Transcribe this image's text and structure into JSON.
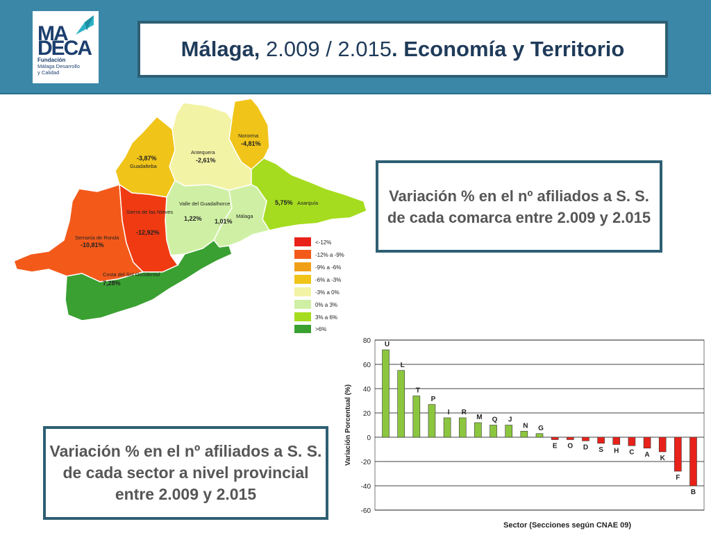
{
  "header": {
    "title_bold": "Málaga,",
    "title_years": " 2.009 / 2.015",
    "title_rest": ". Economía y Territorio"
  },
  "logo": {
    "line1": "MA",
    "line2": "DECA",
    "sub1": "Fundación",
    "sub2": "Málaga Desarrollo",
    "sub3": "y Calidad",
    "color": "#1c3f6e",
    "accent": "#2fb3c6"
  },
  "labels": {
    "comarca": "Variación % en el nº afiliados a S. S. de cada comarca entre 2.009 y 2.015",
    "sector": "Variación % en el nº afiliados a S. S. de cada sector a nivel provincial entre 2.009 y 2.015"
  },
  "map": {
    "regions": [
      {
        "name": "Nororma",
        "value": "-4,81%",
        "color": "#f0c419"
      },
      {
        "name": "Antequera",
        "value": "-2,61%",
        "color": "#f3f3a6"
      },
      {
        "name": "Guadalteba",
        "value": "-3,87%",
        "color": "#f0c419"
      },
      {
        "name": "Axarquía",
        "value": "5,75%",
        "color": "#a6dc1f"
      },
      {
        "name": "Valle del Guadalhorce",
        "value": "1,22%",
        "color": "#cff0a4"
      },
      {
        "name": "Málaga",
        "value": "1,01%",
        "color": "#cff0a4"
      },
      {
        "name": "Sierra de las Nieves",
        "value": "-12,92%",
        "color": "#f03a12"
      },
      {
        "name": "Serranía de Ronda",
        "value": "-10,81%",
        "color": "#f35a1a"
      },
      {
        "name": "Costa del Sol Occidental",
        "value": "7,28%",
        "color": "#3aa032"
      }
    ],
    "legend": [
      {
        "label": "<-12%",
        "color": "#e8221a"
      },
      {
        "label": "-12% a -9%",
        "color": "#f35a1a"
      },
      {
        "label": "-9% a -6%",
        "color": "#f0a018"
      },
      {
        "label": "-6% a -3%",
        "color": "#f0c419"
      },
      {
        "label": "-3% a 0%",
        "color": "#f3f3a6"
      },
      {
        "label": "0% a 3%",
        "color": "#cff0a4"
      },
      {
        "label": "3% a 6%",
        "color": "#a6dc1f"
      },
      {
        "label": ">6%",
        "color": "#3aa032"
      }
    ]
  },
  "chart_data": {
    "type": "bar",
    "title": "",
    "xlabel": "Sector (Secciones según CNAE 09)",
    "ylabel": "Variación Porcentual (%)",
    "ylim": [
      -60,
      80
    ],
    "yticks": [
      80,
      60,
      40,
      20,
      0,
      -20,
      -40,
      -60
    ],
    "grid": true,
    "categories": [
      "U",
      "L",
      "T",
      "P",
      "I",
      "R",
      "M",
      "Q",
      "J",
      "N",
      "G",
      "E",
      "O",
      "D",
      "S",
      "H",
      "C",
      "A",
      "K",
      "F",
      "B"
    ],
    "values": [
      72,
      55,
      34,
      27,
      16,
      16,
      12,
      10,
      10,
      5,
      3,
      -2,
      -2,
      -3,
      -5,
      -6,
      -7,
      -9,
      -12,
      -28,
      -40
    ],
    "positive_color": "#8cc63f",
    "negative_color": "#e8221a"
  }
}
